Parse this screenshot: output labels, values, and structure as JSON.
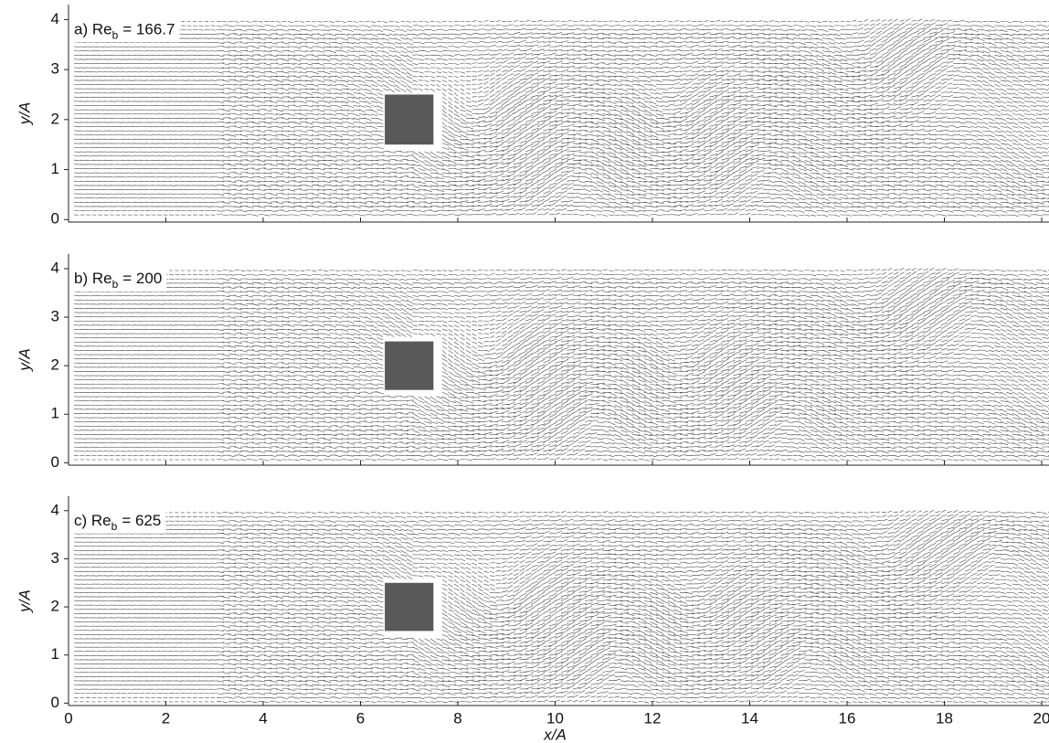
{
  "chart_data": [
    {
      "type": "vector-field",
      "label": {
        "text": "a) Re",
        "subscript": "b",
        "value": "= 166.7"
      },
      "ylabel": "y/A",
      "xlim": [
        0,
        20
      ],
      "ylim": [
        -0.05,
        4.3
      ],
      "yticks": [
        0,
        1,
        2,
        3,
        4
      ],
      "obstacle": {
        "x": [
          6.5,
          7.5
        ],
        "y": [
          1.5,
          2.5
        ],
        "color": "#595959"
      }
    },
    {
      "type": "vector-field",
      "label": {
        "text": "b) Re",
        "subscript": "b",
        "value": "= 200"
      },
      "ylabel": "y/A",
      "xlim": [
        0,
        20
      ],
      "ylim": [
        -0.05,
        4.3
      ],
      "yticks": [
        0,
        1,
        2,
        3,
        4
      ],
      "obstacle": {
        "x": [
          6.5,
          7.5
        ],
        "y": [
          1.5,
          2.5
        ],
        "color": "#595959"
      }
    },
    {
      "type": "vector-field",
      "label": {
        "text": "c) Re",
        "subscript": "b",
        "value": "= 625"
      },
      "ylabel": "y/A",
      "xlabel": "x/A",
      "xlim": [
        0,
        20
      ],
      "ylim": [
        -0.05,
        4.3
      ],
      "yticks": [
        0,
        1,
        2,
        3,
        4
      ],
      "xticks": [
        0,
        2,
        4,
        6,
        8,
        10,
        12,
        14,
        16,
        18,
        20
      ],
      "obstacle": {
        "x": [
          6.5,
          7.5
        ],
        "y": [
          1.5,
          2.5
        ],
        "color": "#595959"
      }
    }
  ]
}
